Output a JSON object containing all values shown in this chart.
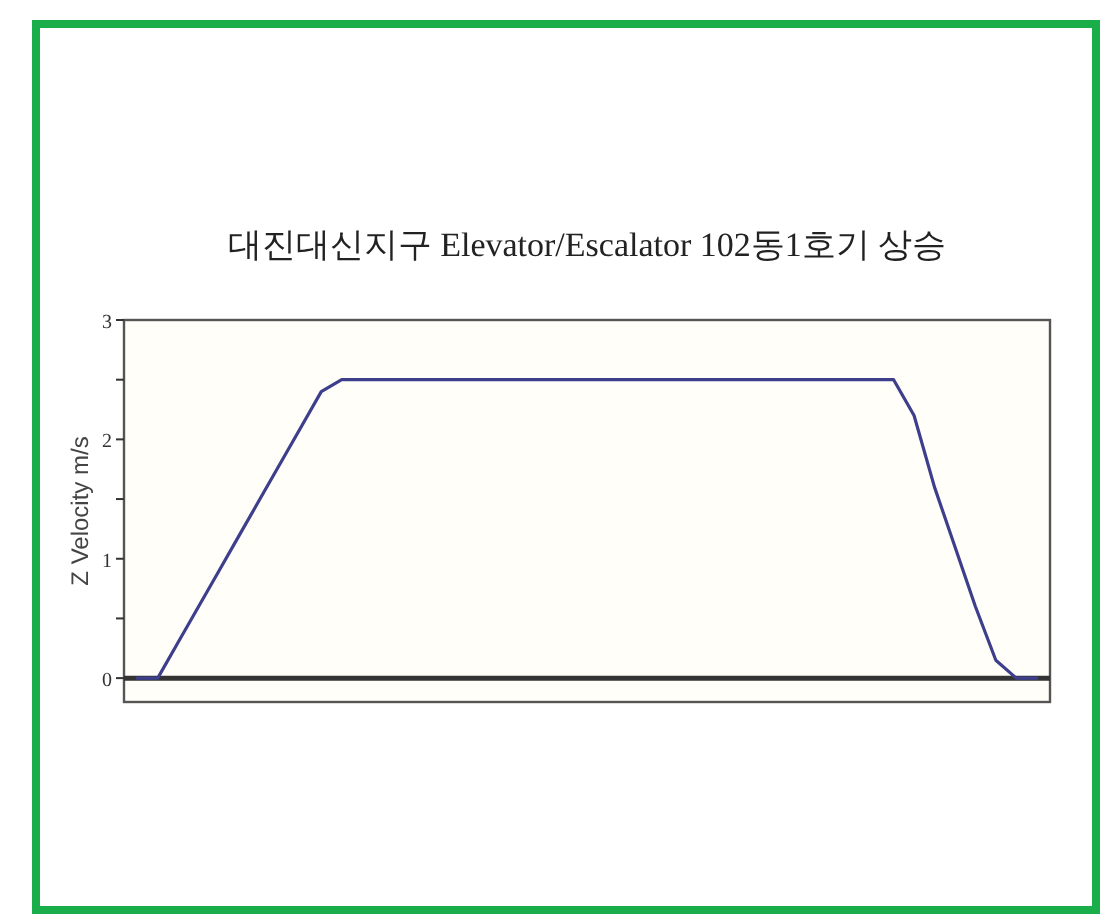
{
  "chart_data": {
    "type": "line",
    "title": "대진대신지구 Elevator/Escalator 102동1호기 상승",
    "ylabel": "Z Velocity m/s",
    "categories": [
      null,
      null,
      null,
      null,
      null,
      null,
      null,
      null,
      null,
      null,
      null,
      null,
      null,
      null,
      null,
      null,
      null,
      null,
      null,
      null,
      null,
      null,
      null,
      null,
      null,
      null,
      null,
      null,
      null,
      null,
      null,
      null,
      null,
      null,
      null,
      null,
      null,
      null,
      null,
      null,
      null,
      null,
      null,
      null,
      null
    ],
    "series": [
      {
        "color": "#3d3f8c",
        "values": [
          0,
          0,
          0.3,
          0.6,
          0.9,
          1.2,
          1.5,
          1.8,
          2.1,
          2.4,
          2.5,
          2.5,
          2.5,
          2.5,
          2.5,
          2.5,
          2.5,
          2.5,
          2.5,
          2.5,
          2.5,
          2.5,
          2.5,
          2.5,
          2.5,
          2.5,
          2.5,
          2.5,
          2.5,
          2.5,
          2.5,
          2.5,
          2.5,
          2.5,
          2.5,
          2.5,
          2.5,
          2.5,
          2.2,
          1.6,
          1.1,
          0.6,
          0.15,
          0,
          0
        ]
      }
    ],
    "ylim": [
      -0.2,
      3
    ],
    "yticks": [
      0,
      {
        "value": 0.5,
        "label": null
      },
      1,
      {
        "value": 1.5,
        "label": null
      },
      2,
      {
        "value": 2.5,
        "label": null
      },
      3
    ],
    "tick_labels": "y",
    "ref_lines": [
      {
        "axis": "y",
        "value": 0,
        "color": "#333333",
        "line_style": "solid"
      }
    ]
  }
}
